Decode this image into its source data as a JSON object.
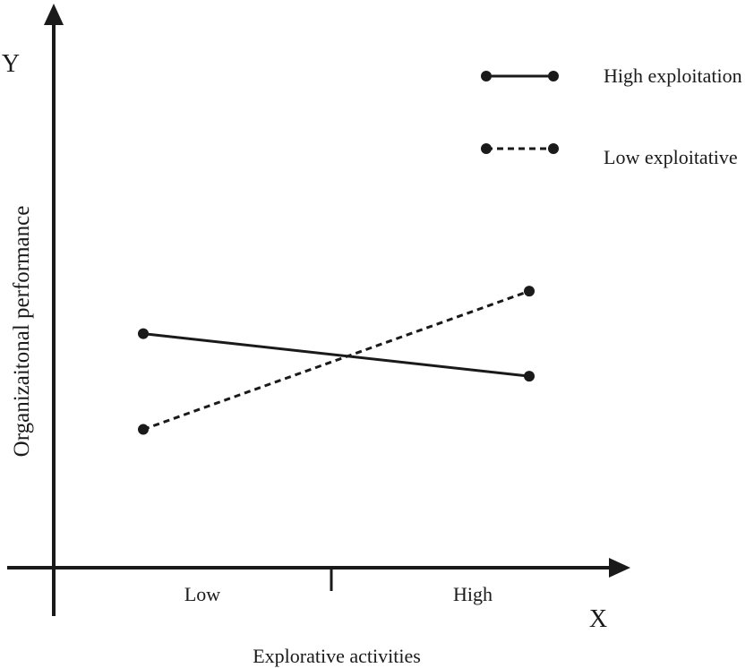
{
  "chart_data": {
    "type": "line",
    "y_axis_symbol": "Y",
    "x_axis_symbol": "X",
    "ylabel": "Organizaitonal performance",
    "xlabel": "Explorative activities",
    "categories": [
      "Low",
      "High"
    ],
    "ylim": [
      0,
      10
    ],
    "grid": false,
    "legend_position": "top-right",
    "series": [
      {
        "name": "High exploitation",
        "values": [
          4.4,
          3.6
        ],
        "line_style": "solid",
        "color": "#1a1a1a"
      },
      {
        "name": "Low exploitative",
        "values": [
          2.6,
          5.2
        ],
        "line_style": "dashed",
        "color": "#1a1a1a"
      }
    ]
  }
}
